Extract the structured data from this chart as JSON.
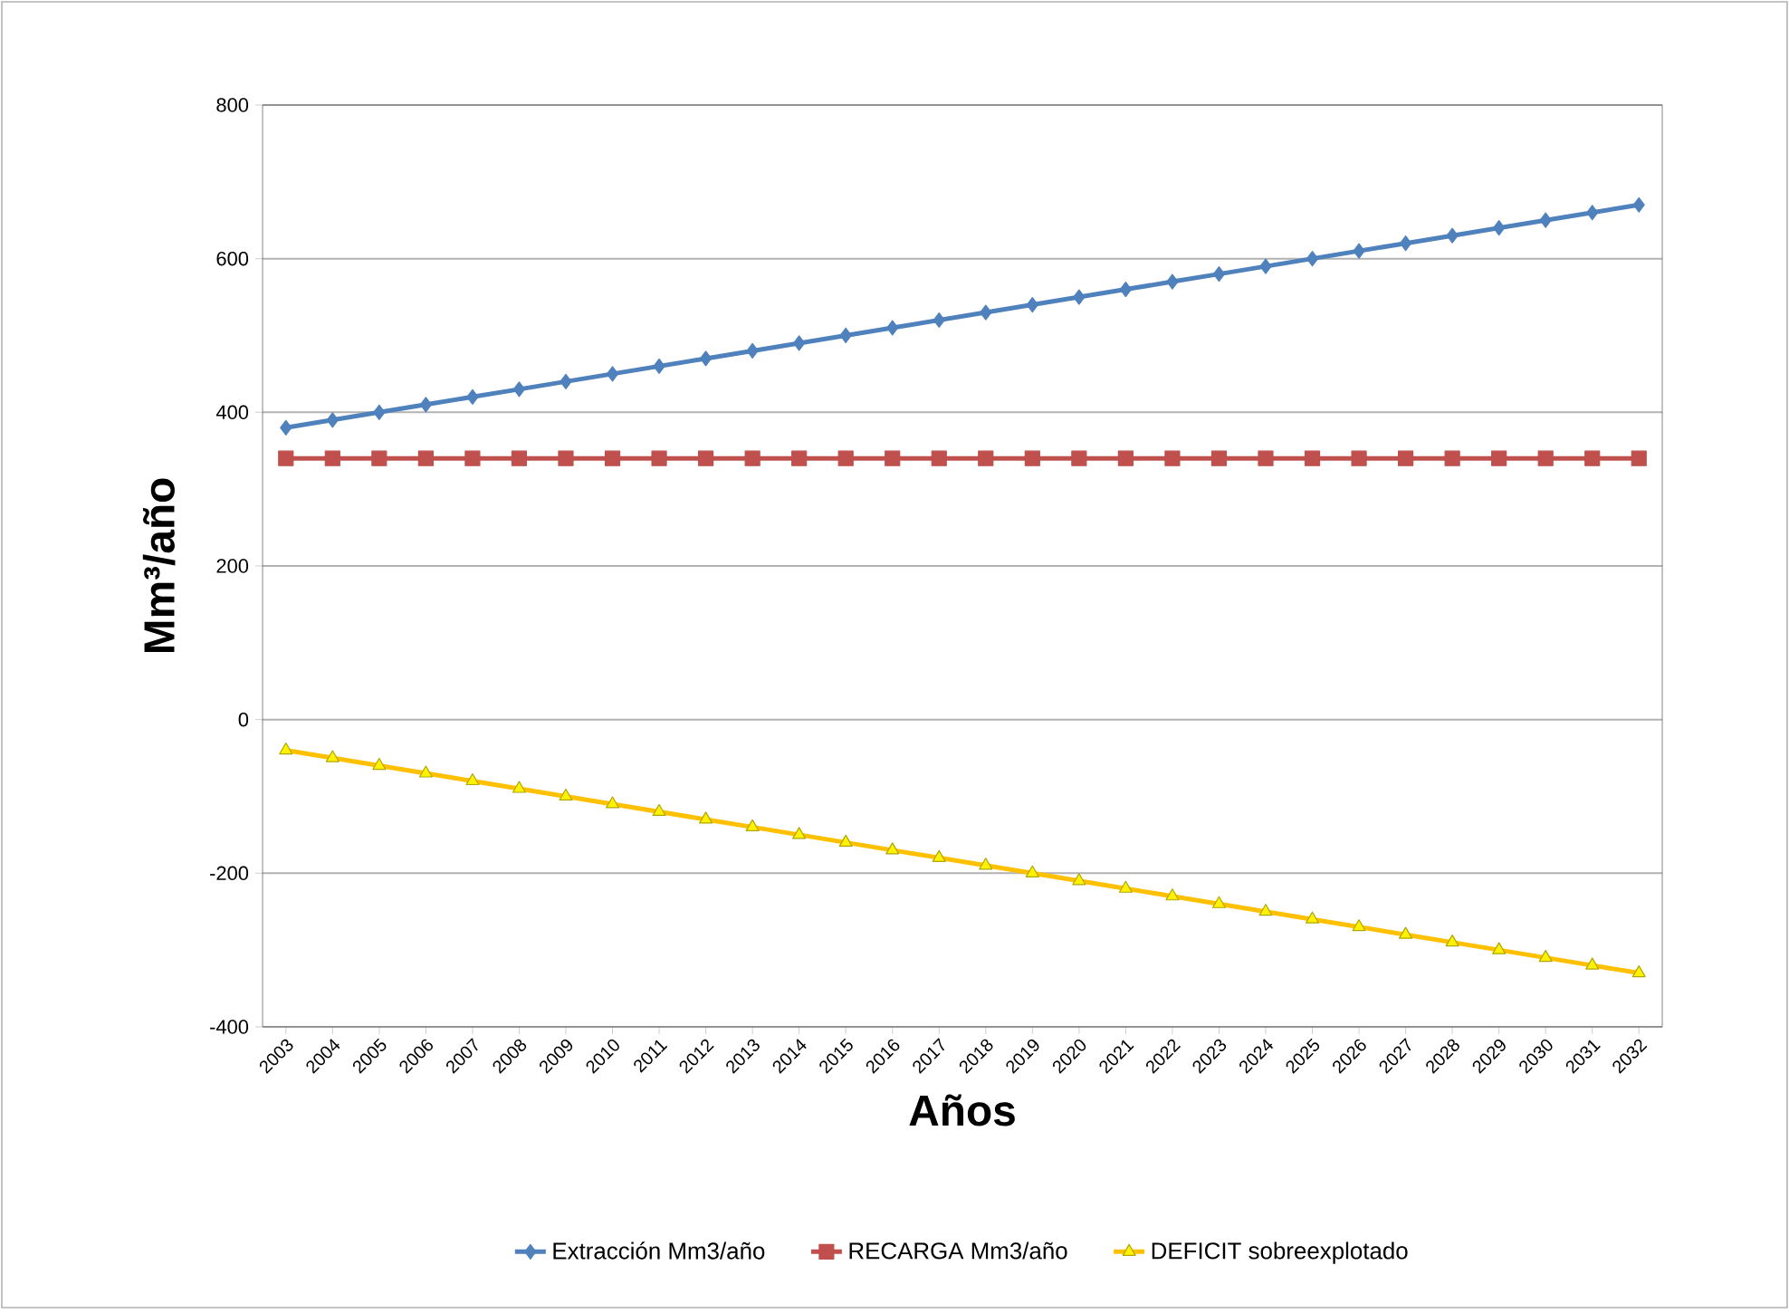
{
  "chart_data": {
    "type": "line",
    "xlabel": "Años",
    "ylabel": "Mm³/año",
    "categories": [
      "2003",
      "2004",
      "2005",
      "2006",
      "2007",
      "2008",
      "2009",
      "2010",
      "2011",
      "2012",
      "2013",
      "2014",
      "2015",
      "2016",
      "2017",
      "2018",
      "2019",
      "2020",
      "2021",
      "2022",
      "2023",
      "2024",
      "2025",
      "2026",
      "2027",
      "2028",
      "2029",
      "2030",
      "2031",
      "2032"
    ],
    "series": [
      {
        "name": "Extracción  Mm3/año",
        "color": "#4f81bd",
        "marker": "diamond",
        "values": [
          380,
          390,
          400,
          410,
          420,
          430,
          440,
          450,
          460,
          470,
          480,
          490,
          500,
          510,
          520,
          530,
          540,
          550,
          560,
          570,
          580,
          590,
          600,
          610,
          620,
          630,
          640,
          650,
          660,
          670
        ]
      },
      {
        "name": "RECARGA Mm3/año",
        "color": "#c0504d",
        "marker": "square",
        "values": [
          340,
          340,
          340,
          340,
          340,
          340,
          340,
          340,
          340,
          340,
          340,
          340,
          340,
          340,
          340,
          340,
          340,
          340,
          340,
          340,
          340,
          340,
          340,
          340,
          340,
          340,
          340,
          340,
          340,
          340
        ]
      },
      {
        "name": "DEFICIT sobreexplotado",
        "color": "#ffc000",
        "marker": "triangle",
        "values": [
          -40,
          -50,
          -60,
          -70,
          -80,
          -90,
          -100,
          -110,
          -120,
          -130,
          -140,
          -150,
          -160,
          -170,
          -180,
          -190,
          -200,
          -210,
          -220,
          -230,
          -240,
          -250,
          -260,
          -270,
          -280,
          -290,
          -300,
          -310,
          -320,
          -330
        ]
      }
    ],
    "ylim": [
      -400,
      800
    ],
    "yticks": [
      -400,
      -200,
      0,
      200,
      400,
      600,
      800
    ],
    "grid": "y",
    "legend": "bottom"
  }
}
